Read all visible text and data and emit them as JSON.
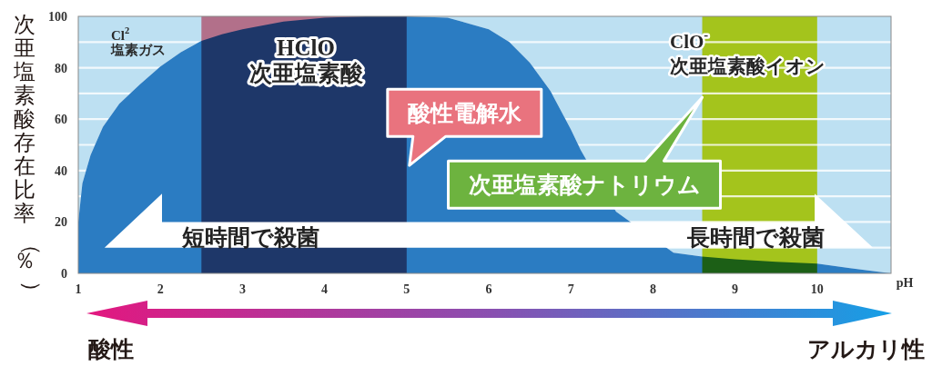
{
  "chart_data": {
    "type": "area",
    "xlabel": "pH",
    "ylabel": "次亜塩素酸存在比率（％）",
    "x": [
      1,
      1.05,
      1.15,
      1.3,
      1.5,
      1.75,
      2,
      2.25,
      2.5,
      2.75,
      3,
      3.5,
      4,
      4.5,
      5,
      5.5,
      6,
      6.25,
      6.5,
      6.75,
      7,
      7.12,
      7.55,
      8.25,
      8.6,
      9,
      9.5,
      10,
      10.4,
      10.9
    ],
    "series": [
      {
        "color": "#2b7cc2",
        "values": [
          20,
          35,
          46,
          57,
          66,
          73.5,
          80.5,
          86,
          90.5,
          93,
          95,
          98,
          99.5,
          100,
          100,
          99.5,
          95,
          90,
          82,
          71,
          56,
          48,
          24,
          8,
          6.5,
          5.5,
          4.5,
          3.8,
          2,
          0
        ]
      }
    ],
    "xlim": [
      1,
      10.9
    ],
    "xticks": [
      1,
      2,
      3,
      4,
      5,
      6,
      7,
      8,
      9,
      10
    ],
    "ylim": [
      0,
      100
    ],
    "yticks": [
      0,
      {
        "value": 10,
        "label": null
      },
      20,
      {
        "value": 30,
        "label": null
      },
      40,
      {
        "value": 50,
        "label": null
      },
      60,
      {
        "value": 70,
        "label": null
      },
      80,
      {
        "value": 90,
        "label": null
      },
      100
    ],
    "grid": "y",
    "bands": [
      {
        "axis": "x",
        "from": 2.5,
        "to": 5,
        "label": "酸性電解水",
        "color": "#b2708a"
      },
      {
        "axis": "x",
        "from": 8.6,
        "to": 10,
        "label": "次亜塩素酸ナトリウム",
        "color": "#a4c41c"
      }
    ],
    "annotations": [
      "Cl$^{2}$\n塩素ガス",
      "HClO\n次亜塩素酸",
      "ClO$^{-}$\n次亜塩素酸イオン",
      "短時間で殺菌",
      "長時間で殺菌",
      "酸性",
      "アルカリ性"
    ]
  }
}
